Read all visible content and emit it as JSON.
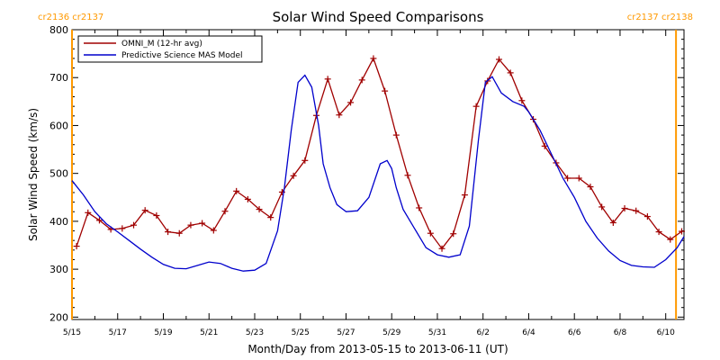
{
  "chart_data": {
    "type": "line",
    "title": "Solar Wind Speed Comparisons",
    "xlabel": "Month/Day from 2013-05-15 to 2013-06-11 (UT)",
    "ylabel": "Solar Wind Speed (km/s)",
    "ylim": [
      195,
      800
    ],
    "xlim_days": [
      0,
      26.8
    ],
    "yticks": [
      200,
      300,
      400,
      500,
      600,
      700,
      800
    ],
    "xtick_labels": [
      "5/15",
      "5/17",
      "5/19",
      "5/21",
      "5/23",
      "5/25",
      "5/27",
      "5/29",
      "5/31",
      "6/2",
      "6/4",
      "6/6",
      "6/8",
      "6/10"
    ],
    "corner_labels": {
      "left": "cr2136 cr2137",
      "right": "cr2137 cr2138"
    },
    "rotation_markers": [
      0.0,
      26.45
    ],
    "legend": {
      "position": "top-left"
    },
    "colors": {
      "omni": "#a00000",
      "model": "#0000cc",
      "marker": "#ff9900"
    },
    "series": [
      {
        "name": "OMNI_M (12-hr avg)",
        "marker": "plus",
        "x": [
          0.2,
          0.7,
          1.2,
          1.7,
          2.2,
          2.7,
          3.2,
          3.7,
          4.2,
          4.7,
          5.2,
          5.7,
          6.2,
          6.7,
          7.2,
          7.7,
          8.2,
          8.7,
          9.2,
          9.7,
          10.2,
          10.7,
          11.2,
          11.7,
          12.2,
          12.7,
          13.2,
          13.7,
          14.2,
          14.7,
          15.2,
          15.7,
          16.2,
          16.7,
          17.2,
          17.7,
          18.2,
          18.7,
          19.2,
          19.7,
          20.2,
          20.7,
          21.2,
          21.7,
          22.2,
          22.7,
          23.2,
          23.7,
          24.2,
          24.7,
          25.2,
          25.7,
          26.2,
          26.7
        ],
        "y": [
          348,
          418,
          402,
          383,
          385,
          392,
          423,
          412,
          378,
          375,
          392,
          396,
          381,
          421,
          463,
          446,
          425,
          408,
          461,
          495,
          527,
          621,
          697,
          622,
          648,
          695,
          740,
          672,
          580,
          496,
          428,
          375,
          343,
          374,
          455,
          640,
          693,
          738,
          710,
          652,
          613,
          557,
          522,
          490,
          490,
          472,
          430,
          397,
          427,
          422,
          410,
          378,
          362,
          379
        ]
      },
      {
        "name": "Predictive Science MAS Model",
        "x": [
          0.0,
          0.5,
          1.0,
          1.5,
          2.0,
          2.5,
          3.0,
          3.5,
          4.0,
          4.5,
          5.0,
          5.5,
          6.0,
          6.5,
          7.0,
          7.5,
          8.0,
          8.5,
          9.0,
          9.3,
          9.6,
          9.9,
          10.2,
          10.5,
          10.8,
          11.0,
          11.3,
          11.6,
          12.0,
          12.5,
          13.0,
          13.5,
          13.8,
          14.0,
          14.2,
          14.5,
          15.0,
          15.5,
          16.0,
          16.5,
          17.0,
          17.4,
          17.8,
          18.1,
          18.4,
          18.8,
          19.3,
          19.8,
          20.0,
          20.5,
          21.0,
          21.5,
          22.0,
          22.5,
          23.0,
          23.5,
          24.0,
          24.5,
          25.0,
          25.5,
          26.0,
          26.5,
          26.8
        ],
        "y": [
          485,
          455,
          420,
          395,
          378,
          360,
          342,
          325,
          310,
          302,
          301,
          308,
          315,
          312,
          302,
          296,
          298,
          312,
          380,
          470,
          590,
          690,
          705,
          680,
          600,
          520,
          470,
          435,
          420,
          422,
          450,
          520,
          527,
          510,
          470,
          425,
          385,
          345,
          330,
          325,
          330,
          390,
          570,
          690,
          702,
          668,
          650,
          640,
          628,
          590,
          540,
          490,
          450,
          400,
          365,
          338,
          318,
          308,
          305,
          304,
          320,
          345,
          368
        ]
      }
    ]
  }
}
